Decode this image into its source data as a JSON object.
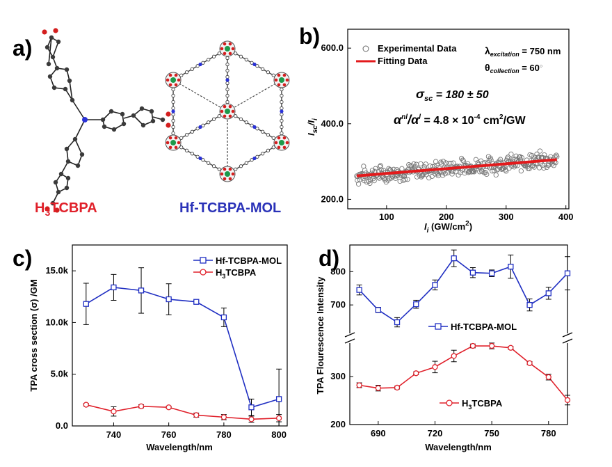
{
  "panel_a": {
    "letter": "a)",
    "ligand_label_main": "H",
    "ligand_label_sub": "3",
    "ligand_label_rest": "TCBPA",
    "mol_label": "Hf-TCBPA-MOL"
  },
  "chart_data": [
    {
      "id": "b",
      "letter": "b)",
      "type": "scatter",
      "xlabel_main": "I",
      "xlabel_sub": "i",
      "xlabel_rest": " (GW/cm",
      "xlabel_sup": "2",
      "xlabel_close": ")",
      "ylabel_main": "I",
      "ylabel_sub": "sc",
      "ylabel_slash": "/I",
      "ylabel_sub2": "i",
      "xlim": [
        35,
        405
      ],
      "ylim": [
        175,
        650
      ],
      "xticks": [
        100,
        200,
        300,
        400
      ],
      "yticks": [
        200.0,
        400.0,
        600.0
      ],
      "ytick_labels": [
        "200.0",
        "400.0",
        "600.0"
      ],
      "legend": [
        "Experimental Data",
        "Fitting Data"
      ],
      "annotations": {
        "lambda": "λ",
        "lambda_sub": "excitation",
        "lambda_val": " = 750 nm",
        "theta": "θ",
        "theta_sub": "collection",
        "theta_val": " = 60",
        "theta_deg": "○",
        "sigma": "σ",
        "sigma_sub": "sc",
        "sigma_val": " = 180 ± 50",
        "alpha": "α",
        "alpha_sup": "nl",
        "alpha_mid": "/α",
        "alpha_sup2": "l",
        "alpha_val": " = 4.8 × 10",
        "alpha_exp": "-4",
        "alpha_unit": " cm",
        "alpha_unit_sup": "2",
        "alpha_unit_end": "/GW"
      },
      "fit": {
        "x": [
          50,
          385
        ],
        "y": [
          262,
          305
        ]
      },
      "scatter_band": {
        "x_start": 50,
        "x_end": 385,
        "count": 320,
        "y_center_start": 262,
        "y_center_end": 305,
        "spread": 28
      }
    },
    {
      "id": "c",
      "letter": "c)",
      "type": "line",
      "xlabel": "Wavelength/nm",
      "ylabel": "TPA cross section (σ) /GM",
      "xlim": [
        725,
        803
      ],
      "ylim": [
        0,
        17500
      ],
      "xticks": [
        740,
        760,
        780,
        800
      ],
      "yticks": [
        0,
        5000,
        10000,
        15000
      ],
      "ytick_labels": [
        "0.0",
        "5.0k",
        "10.0k",
        "15.0k"
      ],
      "x": [
        730,
        740,
        750,
        760,
        770,
        780,
        790,
        800
      ],
      "series": [
        {
          "name": "Hf-TCBPA-MOL",
          "color": "#1f2ec2",
          "values": [
            11800,
            13400,
            13100,
            12250,
            12000,
            10500,
            1800,
            2600
          ],
          "errors": [
            2000,
            1250,
            2200,
            1500,
            150,
            900,
            800,
            2900
          ]
        },
        {
          "name_main": "H",
          "name_sub": "3",
          "name_rest": "TCBPA",
          "color": "#e0202a",
          "values": [
            2050,
            1400,
            1900,
            1800,
            1050,
            850,
            650,
            750
          ],
          "errors": [
            120,
            450,
            150,
            120,
            200,
            250,
            300,
            350
          ]
        }
      ]
    },
    {
      "id": "d",
      "letter": "d)",
      "type": "line",
      "xlabel": "Wavelength/nm",
      "ylabel": "TPA Flourescence Intensity",
      "xlim": [
        675,
        790
      ],
      "xticks": [
        690,
        720,
        750,
        780
      ],
      "broken_axis": true,
      "upper_ylim": [
        600,
        880
      ],
      "upper_yticks": [
        700,
        800
      ],
      "lower_ylim": [
        200,
        380
      ],
      "lower_yticks": [
        200,
        300
      ],
      "x": [
        680,
        690,
        700,
        710,
        720,
        730,
        740,
        750,
        760,
        770,
        780,
        790
      ],
      "series": [
        {
          "name": "Hf-TCBPA-MOL",
          "color": "#1f2ec2",
          "axis": "upper",
          "values": [
            745,
            685,
            648,
            702,
            760,
            840,
            797,
            795,
            815,
            700,
            735,
            795
          ],
          "errors": [
            15,
            8,
            14,
            12,
            15,
            25,
            15,
            10,
            35,
            18,
            18,
            50
          ]
        },
        {
          "name_main": "H",
          "name_sub": "3",
          "name_rest": "TCBPA",
          "color": "#e0202a",
          "axis": "lower",
          "values": [
            282,
            276,
            277,
            307,
            320,
            343,
            364,
            364,
            360,
            328,
            299,
            251
          ],
          "errors": [
            5,
            6,
            3,
            3,
            12,
            12,
            4,
            6,
            3,
            3,
            6,
            10
          ]
        }
      ]
    }
  ]
}
